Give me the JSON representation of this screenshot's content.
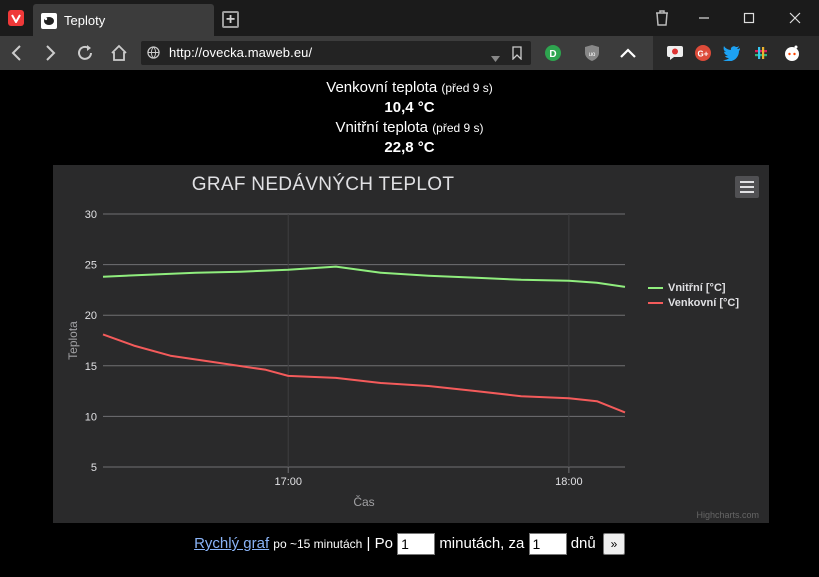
{
  "browser": {
    "tab_title": "Teploty",
    "url": "http://ovecka.maweb.eu/"
  },
  "readings": {
    "outdoor_label": "Venkovní teplota",
    "outdoor_age": "(před 9 s)",
    "outdoor_value": "10,4 °C",
    "indoor_label": "Vnitřní teplota",
    "indoor_age": "(před 9 s)",
    "indoor_value": "22,8 °C"
  },
  "chart_data": {
    "type": "line",
    "title": "GRAF NEDÁVNÝCH TEPLOT",
    "xlabel": "Čas",
    "ylabel": "Teplota",
    "ylim": [
      5,
      30
    ],
    "yticks": [
      5,
      10,
      15,
      20,
      25,
      30
    ],
    "xticks": [
      "17:00",
      "18:00"
    ],
    "xlim_hours": [
      16.34,
      18.2
    ],
    "grid": true,
    "legend_position": "right",
    "credits": "Highcharts.com",
    "series": [
      {
        "name": "Vnitřní [°C]",
        "color": "#90ee7e",
        "x": [
          16.34,
          16.5,
          16.67,
          16.83,
          17.0,
          17.17,
          17.33,
          17.5,
          17.67,
          17.83,
          18.0,
          18.1,
          18.2
        ],
        "y": [
          23.8,
          24.0,
          24.2,
          24.3,
          24.5,
          24.8,
          24.2,
          23.9,
          23.7,
          23.5,
          23.4,
          23.2,
          22.8
        ]
      },
      {
        "name": "Venkovní [°C]",
        "color": "#f45b5b",
        "x": [
          16.34,
          16.45,
          16.58,
          16.75,
          16.92,
          17.0,
          17.17,
          17.33,
          17.5,
          17.67,
          17.83,
          18.0,
          18.1,
          18.2
        ],
        "y": [
          18.1,
          17.0,
          16.0,
          15.3,
          14.6,
          14.0,
          13.8,
          13.3,
          13.0,
          12.5,
          12.0,
          11.8,
          11.5,
          10.4
        ]
      }
    ]
  },
  "footer": {
    "link": "Rychlý graf",
    "link_note": "po ~15 minutách",
    "separator": "|",
    "po_label": "Po",
    "minutes_value": "1",
    "minutes_label": "minutách, za",
    "days_value": "1",
    "days_label": "dnů",
    "go_label": "»"
  }
}
